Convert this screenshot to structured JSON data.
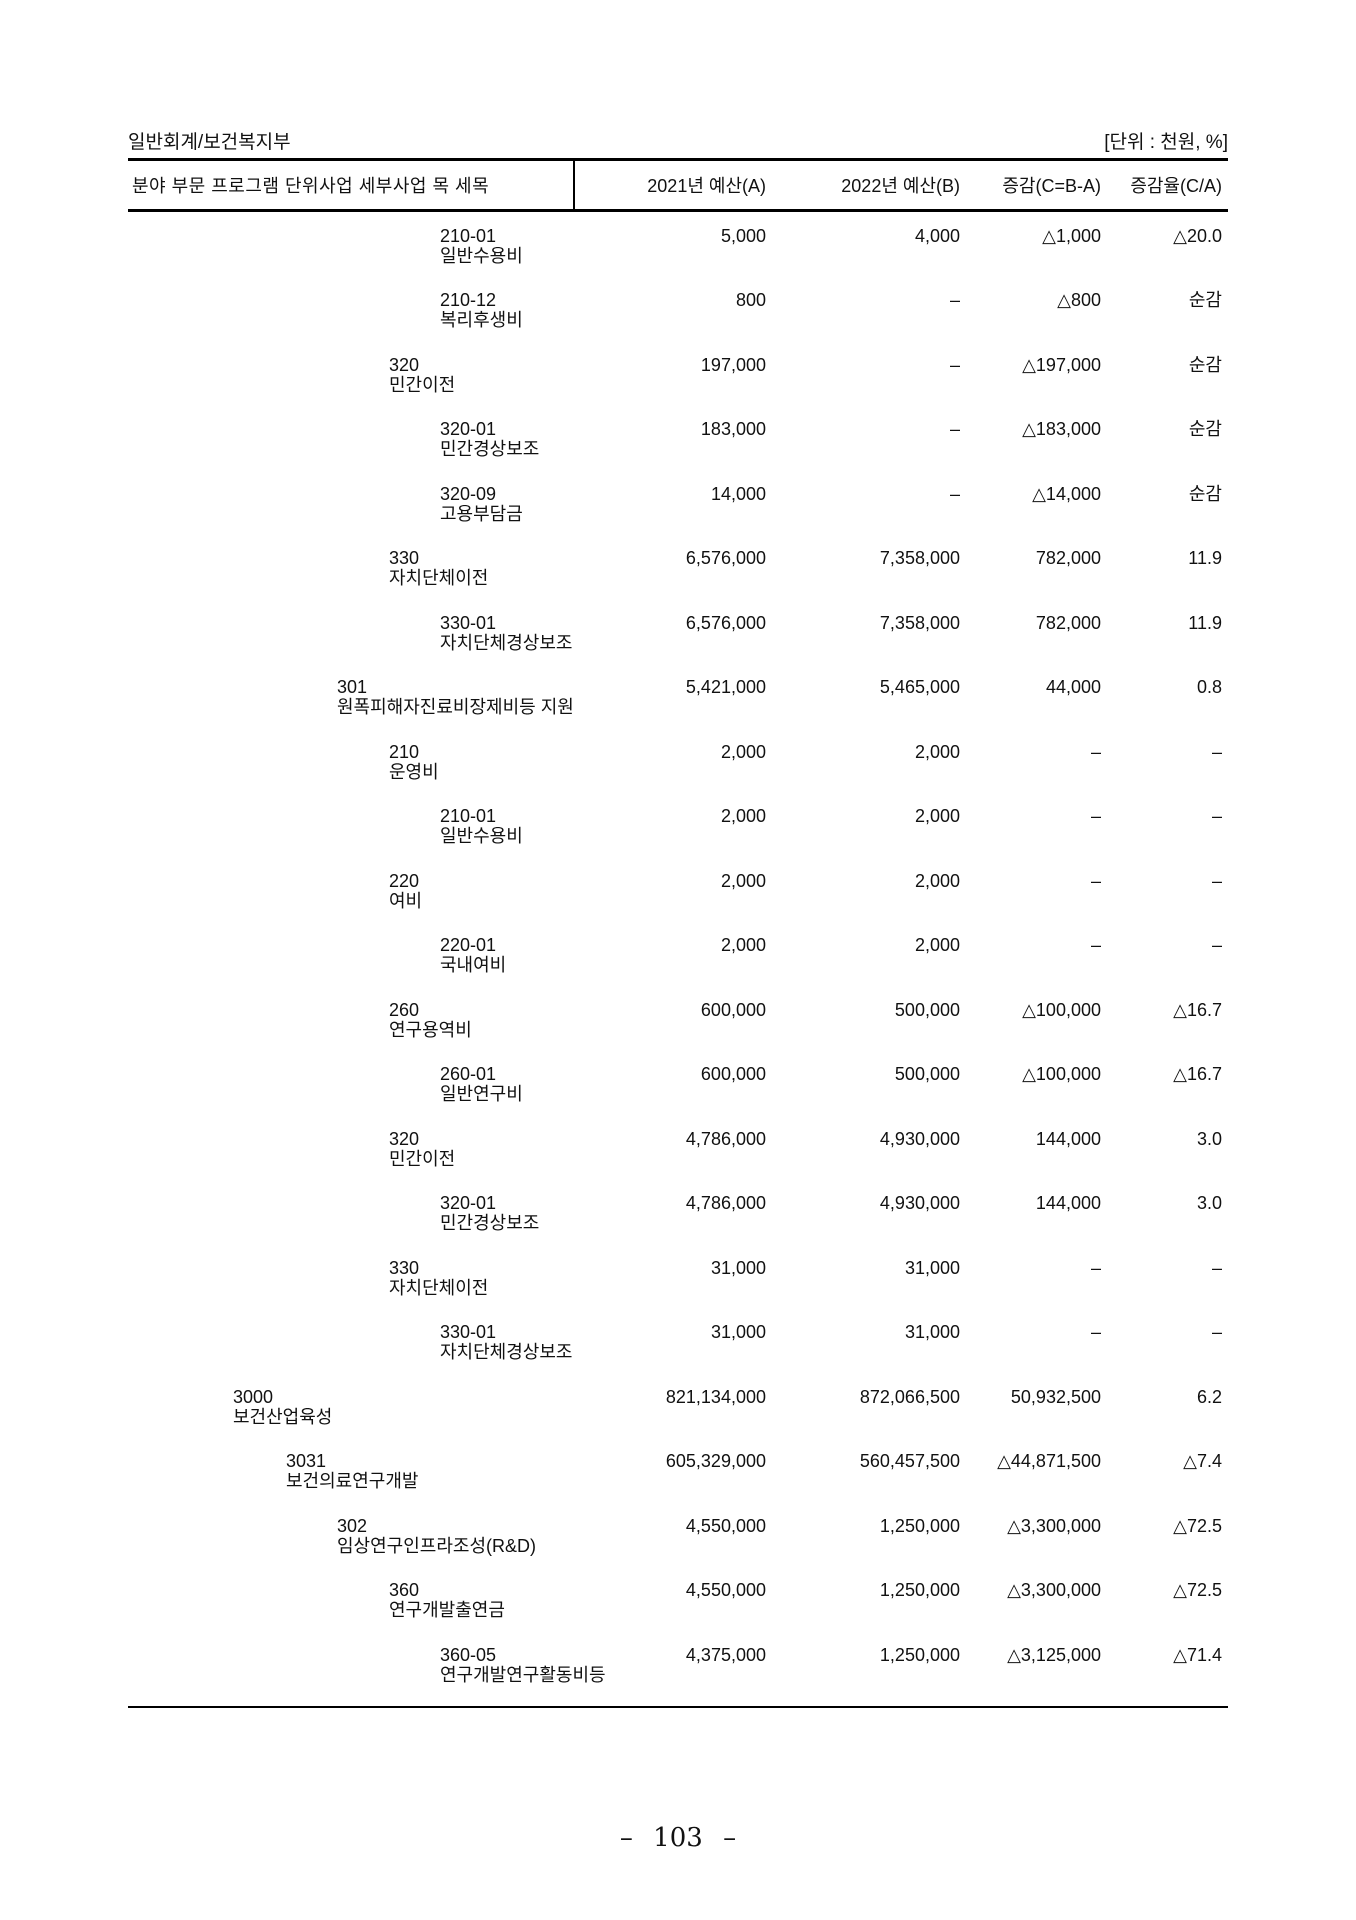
{
  "page": {
    "account_title": "일반회계/보건복지부",
    "unit_note": "[단위 : 천원, %]",
    "page_number": "– 103 –"
  },
  "table": {
    "hierarchy_header": "분야 부문 프로그램 단위사업 세부사업 목 세목",
    "columns": {
      "budget_2021": "2021년 예산(A)",
      "budget_2022": "2022년 예산(B)",
      "change": "증감(C=B-A)",
      "change_rate": "증감율(C/A)"
    },
    "rows": [
      {
        "level": "subitem",
        "code": "210-01",
        "name": "일반수용비",
        "y2021": "5,000",
        "y2022": "4,000",
        "change": "△1,000",
        "rate": "△20.0"
      },
      {
        "level": "subitem",
        "code": "210-12",
        "name": "복리후생비",
        "y2021": "800",
        "y2022": "–",
        "change": "△800",
        "rate": "순감"
      },
      {
        "level": "item",
        "code": "320",
        "name": "민간이전",
        "y2021": "197,000",
        "y2022": "–",
        "change": "△197,000",
        "rate": "순감"
      },
      {
        "level": "subitem",
        "code": "320-01",
        "name": "민간경상보조",
        "y2021": "183,000",
        "y2022": "–",
        "change": "△183,000",
        "rate": "순감"
      },
      {
        "level": "subitem",
        "code": "320-09",
        "name": "고용부담금",
        "y2021": "14,000",
        "y2022": "–",
        "change": "△14,000",
        "rate": "순감"
      },
      {
        "level": "item",
        "code": "330",
        "name": "자치단체이전",
        "y2021": "6,576,000",
        "y2022": "7,358,000",
        "change": "782,000",
        "rate": "11.9"
      },
      {
        "level": "subitem",
        "code": "330-01",
        "name": "자치단체경상보조",
        "y2021": "6,576,000",
        "y2022": "7,358,000",
        "change": "782,000",
        "rate": "11.9"
      },
      {
        "level": "detail",
        "code": "301",
        "name": "원폭피해자진료비장제비등 지원",
        "y2021": "5,421,000",
        "y2022": "5,465,000",
        "change": "44,000",
        "rate": "0.8"
      },
      {
        "level": "item",
        "code": "210",
        "name": "운영비",
        "y2021": "2,000",
        "y2022": "2,000",
        "change": "–",
        "rate": "–"
      },
      {
        "level": "subitem",
        "code": "210-01",
        "name": "일반수용비",
        "y2021": "2,000",
        "y2022": "2,000",
        "change": "–",
        "rate": "–"
      },
      {
        "level": "item",
        "code": "220",
        "name": "여비",
        "y2021": "2,000",
        "y2022": "2,000",
        "change": "–",
        "rate": "–"
      },
      {
        "level": "subitem",
        "code": "220-01",
        "name": "국내여비",
        "y2021": "2,000",
        "y2022": "2,000",
        "change": "–",
        "rate": "–"
      },
      {
        "level": "item",
        "code": "260",
        "name": "연구용역비",
        "y2021": "600,000",
        "y2022": "500,000",
        "change": "△100,000",
        "rate": "△16.7"
      },
      {
        "level": "subitem",
        "code": "260-01",
        "name": "일반연구비",
        "y2021": "600,000",
        "y2022": "500,000",
        "change": "△100,000",
        "rate": "△16.7"
      },
      {
        "level": "item",
        "code": "320",
        "name": "민간이전",
        "y2021": "4,786,000",
        "y2022": "4,930,000",
        "change": "144,000",
        "rate": "3.0"
      },
      {
        "level": "subitem",
        "code": "320-01",
        "name": "민간경상보조",
        "y2021": "4,786,000",
        "y2022": "4,930,000",
        "change": "144,000",
        "rate": "3.0"
      },
      {
        "level": "item",
        "code": "330",
        "name": "자치단체이전",
        "y2021": "31,000",
        "y2022": "31,000",
        "change": "–",
        "rate": "–"
      },
      {
        "level": "subitem",
        "code": "330-01",
        "name": "자치단체경상보조",
        "y2021": "31,000",
        "y2022": "31,000",
        "change": "–",
        "rate": "–"
      },
      {
        "level": "program",
        "code": "3000",
        "name": "보건산업육성",
        "y2021": "821,134,000",
        "y2022": "872,066,500",
        "change": "50,932,500",
        "rate": "6.2"
      },
      {
        "level": "unit",
        "code": "3031",
        "name": "보건의료연구개발",
        "y2021": "605,329,000",
        "y2022": "560,457,500",
        "change": "△44,871,500",
        "rate": "△7.4"
      },
      {
        "level": "detail",
        "code": "302",
        "name": "임상연구인프라조성(R&D)",
        "y2021": "4,550,000",
        "y2022": "1,250,000",
        "change": "△3,300,000",
        "rate": "△72.5"
      },
      {
        "level": "item",
        "code": "360",
        "name": "연구개발출연금",
        "y2021": "4,550,000",
        "y2022": "1,250,000",
        "change": "△3,300,000",
        "rate": "△72.5"
      },
      {
        "level": "subitem",
        "code": "360-05",
        "name": "연구개발연구활동비등",
        "y2021": "4,375,000",
        "y2022": "1,250,000",
        "change": "△3,125,000",
        "rate": "△71.4"
      }
    ]
  }
}
